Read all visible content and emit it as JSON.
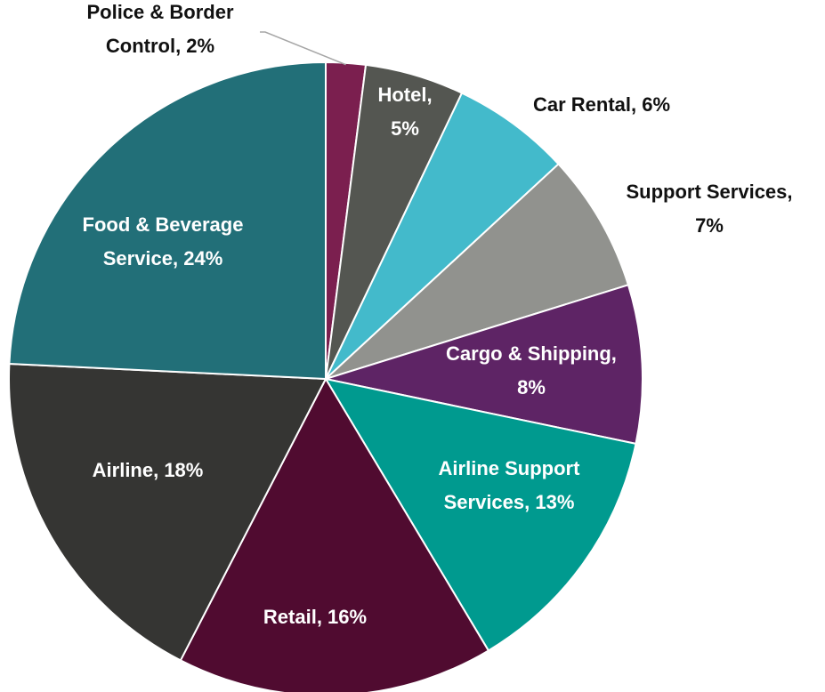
{
  "chart_data": {
    "type": "pie",
    "title": "",
    "slices": [
      {
        "label_lines": [
          "Police & Border",
          "Control, 2%"
        ],
        "value": 2,
        "color": "#7b1f4f",
        "label_color": "#111111"
      },
      {
        "label_lines": [
          "Hotel,",
          "5%"
        ],
        "value": 5,
        "color": "#545651",
        "label_color": "#ffffff"
      },
      {
        "label_lines": [
          "Car Rental, 6%"
        ],
        "value": 6,
        "color": "#43bacb",
        "label_color": "#111111"
      },
      {
        "label_lines": [
          "Support Services,",
          "7%"
        ],
        "value": 7,
        "color": "#91928e",
        "label_color": "#111111"
      },
      {
        "label_lines": [
          "Cargo & Shipping,",
          "8%"
        ],
        "value": 8,
        "color": "#5e2465",
        "label_color": "#ffffff"
      },
      {
        "label_lines": [
          "Airline Support",
          "Services, 13%"
        ],
        "value": 13,
        "color": "#009a8f",
        "label_color": "#ffffff"
      },
      {
        "label_lines": [
          "Retail, 16%"
        ],
        "value": 16,
        "color": "#500b30",
        "label_color": "#ffffff"
      },
      {
        "label_lines": [
          "Airline, 18%"
        ],
        "value": 18,
        "color": "#353533",
        "label_color": "#ffffff"
      },
      {
        "label_lines": [
          "Food & Beverage",
          "Service, 24%"
        ],
        "value": 24,
        "color": "#226f78",
        "label_color": "#ffffff"
      }
    ]
  }
}
